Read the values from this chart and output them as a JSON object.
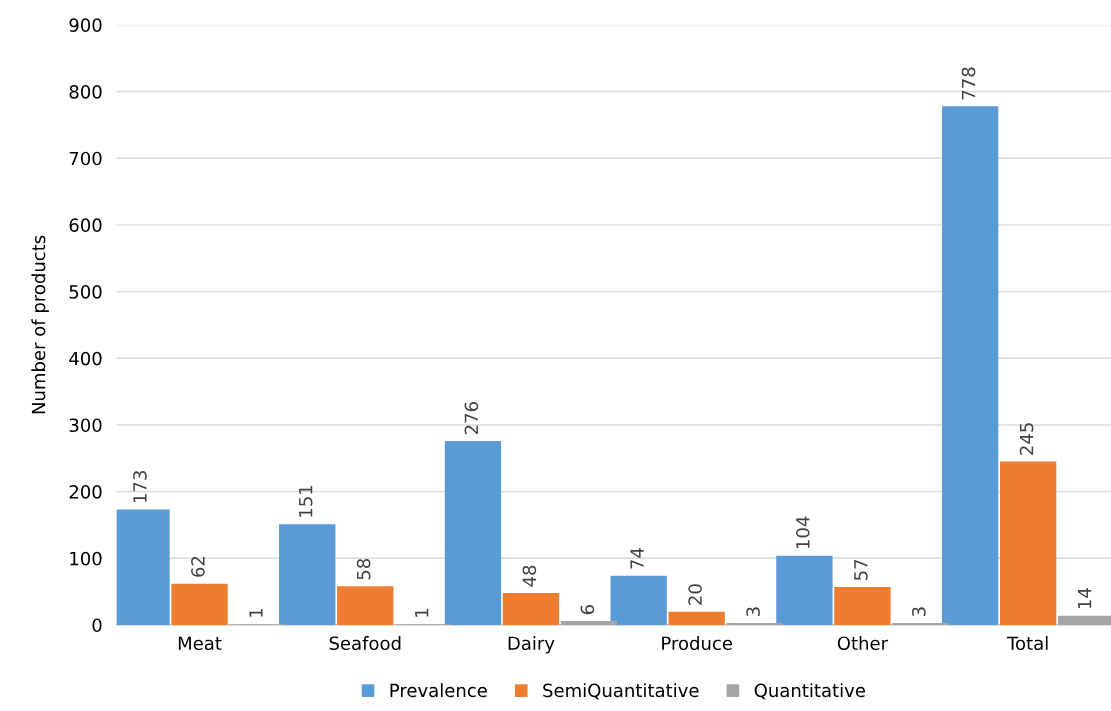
{
  "chart_data": {
    "type": "bar",
    "ylabel": "Number of products",
    "categories": [
      "Meat",
      "Seafood",
      "Dairy",
      "Produce",
      "Other",
      "Total"
    ],
    "series": [
      {
        "name": "Prevalence",
        "color": "#5b9bd5",
        "values": [
          173,
          151,
          276,
          74,
          104,
          778
        ]
      },
      {
        "name": "SemiQuantitative",
        "color": "#ed7d31",
        "values": [
          62,
          58,
          48,
          20,
          57,
          245
        ]
      },
      {
        "name": "Quantitative",
        "color": "#a5a5a5",
        "values": [
          1,
          1,
          6,
          3,
          3,
          14
        ]
      }
    ],
    "ylim": [
      0,
      900
    ],
    "yticks": [
      0,
      100,
      200,
      300,
      400,
      500,
      600,
      700,
      800,
      900
    ],
    "grid": "y",
    "legend": "bottom",
    "data_labels": true
  }
}
